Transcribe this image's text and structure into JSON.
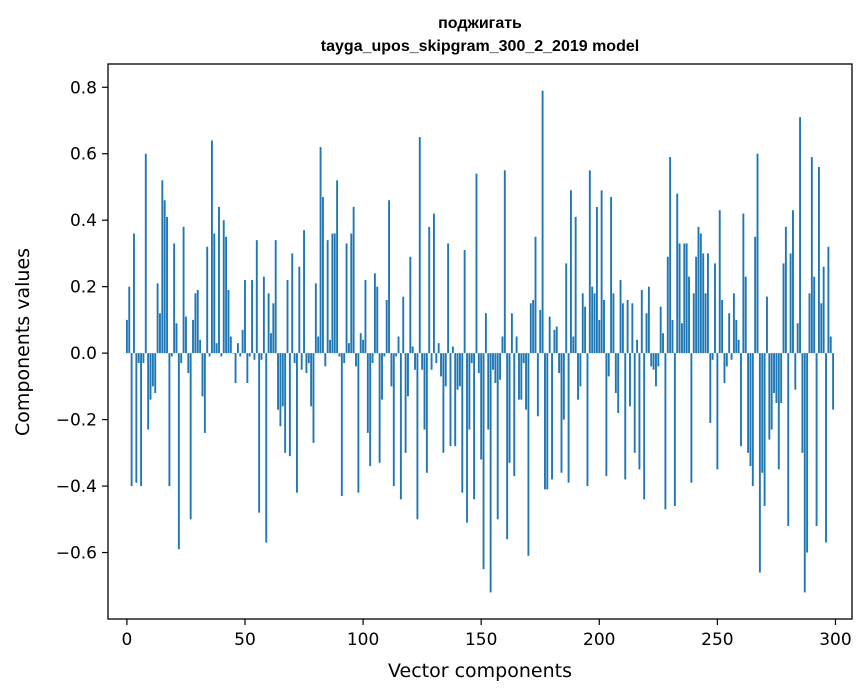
{
  "chart_data": {
    "type": "bar",
    "title": "поджигать",
    "subtitle": "tayga_upos_skipgram_300_2_2019 model",
    "xlabel": "Vector components",
    "ylabel": "Components values",
    "xlim": [
      -8,
      307
    ],
    "ylim": [
      -0.8,
      0.87
    ],
    "xticks": [
      0,
      50,
      100,
      150,
      200,
      250,
      300
    ],
    "xtick_labels": [
      "0",
      "50",
      "100",
      "150",
      "200",
      "250",
      "300"
    ],
    "yticks": [
      -0.6,
      -0.4,
      -0.2,
      0.0,
      0.2,
      0.4,
      0.6,
      0.8
    ],
    "ytick_labels": [
      "−0.6",
      "−0.4",
      "−0.2",
      "0.0",
      "0.2",
      "0.4",
      "0.6",
      "0.8"
    ],
    "grid": false,
    "bar_color": "#1f77b4",
    "x": [
      0,
      1,
      2,
      3,
      4,
      5,
      6,
      7,
      8,
      9,
      10,
      11,
      12,
      13,
      14,
      15,
      16,
      17,
      18,
      19,
      20,
      21,
      22,
      23,
      24,
      25,
      26,
      27,
      28,
      29,
      30,
      31,
      32,
      33,
      34,
      35,
      36,
      37,
      38,
      39,
      40,
      41,
      42,
      43,
      44,
      45,
      46,
      47,
      48,
      49,
      50,
      51,
      52,
      53,
      54,
      55,
      56,
      57,
      58,
      59,
      60,
      61,
      62,
      63,
      64,
      65,
      66,
      67,
      68,
      69,
      70,
      71,
      72,
      73,
      74,
      75,
      76,
      77,
      78,
      79,
      80,
      81,
      82,
      83,
      84,
      85,
      86,
      87,
      88,
      89,
      90,
      91,
      92,
      93,
      94,
      95,
      96,
      97,
      98,
      99,
      100,
      101,
      102,
      103,
      104,
      105,
      106,
      107,
      108,
      109,
      110,
      111,
      112,
      113,
      114,
      115,
      116,
      117,
      118,
      119,
      120,
      121,
      122,
      123,
      124,
      125,
      126,
      127,
      128,
      129,
      130,
      131,
      132,
      133,
      134,
      135,
      136,
      137,
      138,
      139,
      140,
      141,
      142,
      143,
      144,
      145,
      146,
      147,
      148,
      149,
      150,
      151,
      152,
      153,
      154,
      155,
      156,
      157,
      158,
      159,
      160,
      161,
      162,
      163,
      164,
      165,
      166,
      167,
      168,
      169,
      170,
      171,
      172,
      173,
      174,
      175,
      176,
      177,
      178,
      179,
      180,
      181,
      182,
      183,
      184,
      185,
      186,
      187,
      188,
      189,
      190,
      191,
      192,
      193,
      194,
      195,
      196,
      197,
      198,
      199,
      200,
      201,
      202,
      203,
      204,
      205,
      206,
      207,
      208,
      209,
      210,
      211,
      212,
      213,
      214,
      215,
      216,
      217,
      218,
      219,
      220,
      221,
      222,
      223,
      224,
      225,
      226,
      227,
      228,
      229,
      230,
      231,
      232,
      233,
      234,
      235,
      236,
      237,
      238,
      239,
      240,
      241,
      242,
      243,
      244,
      245,
      246,
      247,
      248,
      249,
      250,
      251,
      252,
      253,
      254,
      255,
      256,
      257,
      258,
      259,
      260,
      261,
      262,
      263,
      264,
      265,
      266,
      267,
      268,
      269,
      270,
      271,
      272,
      273,
      274,
      275,
      276,
      277,
      278,
      279,
      280,
      281,
      282,
      283,
      284,
      285,
      286,
      287,
      288,
      289,
      290,
      291,
      292,
      293,
      294,
      295,
      296,
      297,
      298,
      299
    ],
    "values": [
      0.1,
      0.2,
      -0.4,
      0.36,
      -0.39,
      -0.03,
      -0.4,
      -0.03,
      0.6,
      -0.23,
      -0.14,
      -0.1,
      -0.12,
      0.21,
      0.12,
      0.52,
      0.46,
      0.41,
      -0.4,
      -0.01,
      0.33,
      0.09,
      -0.59,
      -0.03,
      0.38,
      0.11,
      -0.06,
      -0.5,
      0.1,
      0.18,
      0.19,
      0.04,
      -0.13,
      -0.24,
      0.32,
      -0.01,
      0.64,
      0.36,
      0.03,
      0.44,
      -0.01,
      0.4,
      0.35,
      0.19,
      0.05,
      0.0,
      -0.09,
      0.03,
      -0.01,
      0.07,
      0.22,
      -0.09,
      -0.01,
      0.22,
      -0.02,
      0.34,
      -0.48,
      -0.02,
      0.23,
      -0.57,
      0.18,
      0.06,
      0.15,
      0.34,
      -0.17,
      -0.22,
      -0.16,
      -0.3,
      0.22,
      -0.31,
      0.3,
      -0.03,
      -0.42,
      0.26,
      -0.05,
      0.37,
      -0.06,
      -0.03,
      -0.16,
      -0.27,
      0.21,
      0.05,
      0.62,
      0.47,
      -0.04,
      0.34,
      0.04,
      0.36,
      0.36,
      0.52,
      -0.01,
      -0.43,
      -0.03,
      0.33,
      0.03,
      0.36,
      0.44,
      -0.04,
      -0.42,
      0.06,
      0.04,
      0.22,
      -0.24,
      -0.34,
      -0.03,
      0.24,
      0.2,
      -0.33,
      -0.14,
      -0.01,
      0.16,
      0.46,
      -0.1,
      -0.4,
      -0.01,
      0.05,
      -0.44,
      0.17,
      -0.3,
      -0.13,
      0.29,
      0.02,
      -0.05,
      -0.5,
      0.65,
      -0.05,
      -0.23,
      -0.36,
      0.38,
      -0.05,
      0.42,
      -0.03,
      0.03,
      -0.07,
      -0.3,
      -0.1,
      0.33,
      -0.28,
      0.02,
      -0.28,
      -0.11,
      -0.1,
      -0.42,
      0.31,
      -0.51,
      -0.23,
      -0.03,
      -0.44,
      0.54,
      -0.06,
      -0.32,
      -0.65,
      0.12,
      -0.23,
      -0.72,
      -0.05,
      -0.09,
      -0.5,
      -0.08,
      0.05,
      0.55,
      -0.56,
      -0.33,
      0.12,
      -0.37,
      0.05,
      -0.14,
      -0.14,
      -0.03,
      -0.17,
      -0.61,
      0.15,
      0.16,
      0.35,
      -0.19,
      0.13,
      0.79,
      -0.41,
      -0.41,
      0.11,
      -0.38,
      0.07,
      0.08,
      -0.06,
      -0.36,
      -0.2,
      0.27,
      -0.39,
      0.49,
      0.05,
      0.41,
      -0.14,
      -0.1,
      0.18,
      0.14,
      -0.4,
      0.55,
      0.2,
      0.18,
      0.44,
      0.1,
      0.49,
      0.16,
      -0.37,
      -0.07,
      0.47,
      0.18,
      -0.12,
      -0.18,
      0.22,
      0.15,
      -0.38,
      0.16,
      -0.16,
      0.15,
      -0.3,
      0.04,
      -0.35,
      0.19,
      -0.44,
      0.12,
      0.2,
      -0.04,
      -0.05,
      -0.1,
      -0.04,
      0.14,
      0.06,
      -0.47,
      0.29,
      0.59,
      0.1,
      -0.46,
      0.48,
      0.33,
      0.09,
      0.33,
      0.33,
      0.23,
      -0.39,
      0.18,
      0.29,
      0.38,
      0.36,
      0.3,
      0.18,
      0.3,
      -0.21,
      -0.02,
      0.27,
      -0.35,
      0.43,
      0.16,
      -0.09,
      -0.04,
      0.12,
      -0.02,
      0.18,
      0.1,
      0.04,
      -0.28,
      0.42,
      0.23,
      -0.3,
      -0.34,
      -0.4,
      0.35,
      0.6,
      -0.66,
      -0.36,
      -0.46,
      0.17,
      -0.26,
      -0.23,
      -0.12,
      -0.15,
      -0.35,
      -0.15,
      0.27,
      0.38,
      -0.52,
      0.3,
      0.43,
      -0.11,
      0.09,
      0.71,
      -0.3,
      -0.72,
      -0.6,
      0.18,
      0.59,
      0.23,
      -0.52,
      0.56,
      0.15,
      0.26,
      -0.57,
      0.32,
      0.05,
      -0.17
    ]
  }
}
